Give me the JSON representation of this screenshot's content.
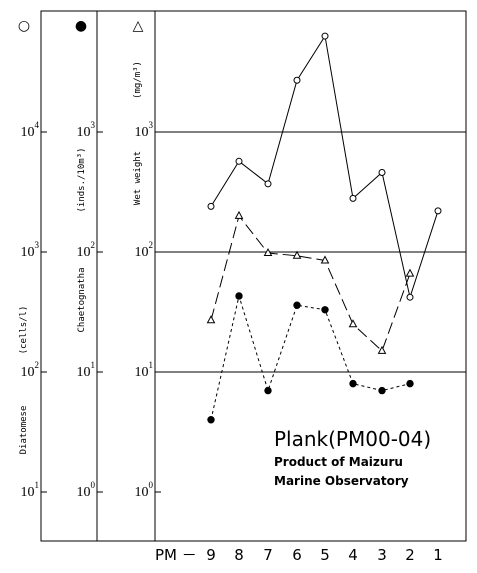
{
  "chart_data": {
    "type": "line",
    "title": "Plank(PM00-04)",
    "subtitle_lines": [
      "Product of Maizuru",
      "Marine Observatory"
    ],
    "x_prefix": "PM －",
    "categories": [
      "9",
      "8",
      "7",
      "6",
      "5",
      "4",
      "3",
      "2",
      "1"
    ],
    "axes": [
      {
        "symbol": "○",
        "label": "Diatomese",
        "unit": "(cells/l)",
        "scale": "log",
        "ylim": [
          10,
          100000
        ],
        "tick_bases": [
          "10",
          "10",
          "10",
          "10"
        ],
        "tick_exponents": [
          "1",
          "2",
          "3",
          "4"
        ]
      },
      {
        "symbol": "●",
        "label": "Chaetognatha",
        "unit": "(inds./10m³)",
        "scale": "log",
        "ylim": [
          1,
          10000
        ],
        "tick_bases": [
          "10",
          "10",
          "10",
          "10"
        ],
        "tick_exponents": [
          "0",
          "1",
          "2",
          "3"
        ]
      },
      {
        "symbol": "△",
        "label": "Wet weight",
        "unit": "(mg/m³)",
        "scale": "log",
        "ylim": [
          1,
          10000
        ],
        "tick_bases": [
          "10",
          "10",
          "10",
          "10"
        ],
        "tick_exponents": [
          "0",
          "1",
          "2",
          "3"
        ]
      }
    ],
    "series": [
      {
        "marker": "open-circle",
        "line": "solid",
        "axis": 0,
        "values": [
          2400,
          5700,
          3700,
          27000,
          63000,
          2800,
          4600,
          420,
          2200
        ]
      },
      {
        "marker": "filled-circle",
        "line": "dotted",
        "axis": 1,
        "values": [
          4,
          43,
          7,
          36,
          33,
          8,
          7,
          8,
          null
        ]
      },
      {
        "marker": "open-triangle",
        "line": "dashed",
        "axis": 2,
        "values": [
          27,
          200,
          98,
          93,
          85,
          25,
          15,
          66,
          null
        ]
      }
    ],
    "gridlines_at": [
      10,
      100,
      1000
    ],
    "colors": {
      "line": "#000000",
      "background": "#ffffff"
    }
  }
}
